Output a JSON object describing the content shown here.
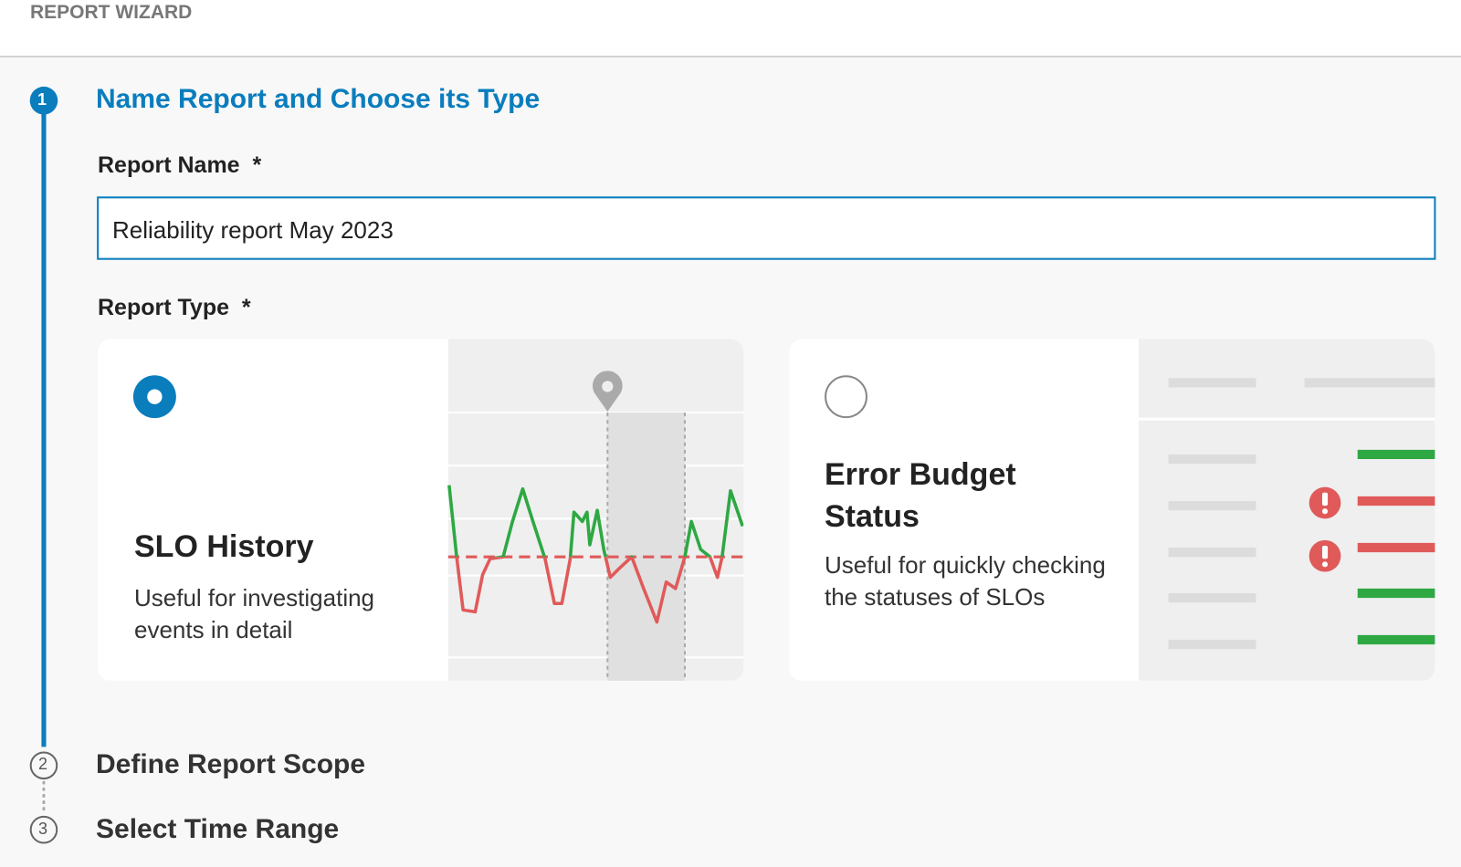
{
  "header": {
    "title": "REPORT WIZARD"
  },
  "steps": [
    {
      "number": "1",
      "title": "Name Report and Choose its Type"
    },
    {
      "number": "2",
      "title": "Define Report Scope"
    },
    {
      "number": "3",
      "title": "Select Time Range"
    }
  ],
  "form": {
    "report_name": {
      "label": "Report Name",
      "required_mark": "*",
      "value": "Reliability report May 2023"
    },
    "report_type": {
      "label": "Report Type",
      "required_mark": "*",
      "options": [
        {
          "title": "SLO History",
          "description": "Useful for investigating events in detail",
          "selected": true
        },
        {
          "title": "Error Budget Status",
          "description": "Useful for quickly checking the statuses of SLOs",
          "selected": false
        }
      ]
    }
  }
}
